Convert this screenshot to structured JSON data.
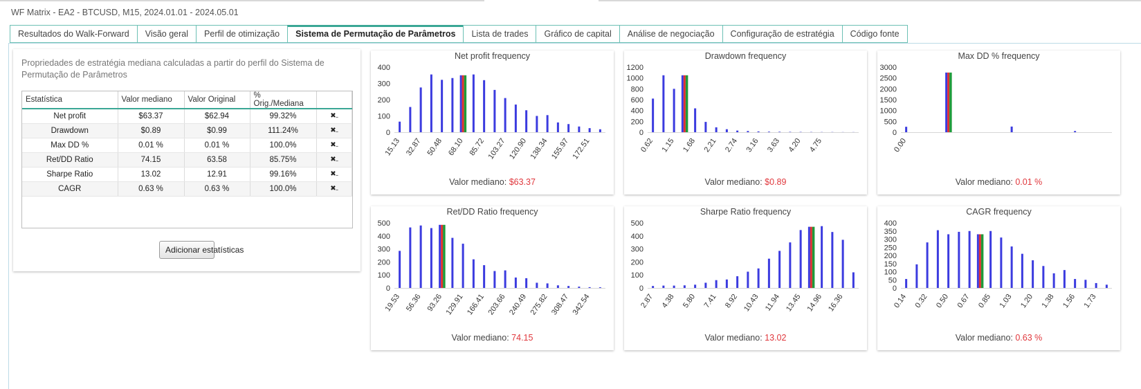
{
  "window": {
    "title": "WF Matrix - EA2 - BTCUSD, M15, 2024.01.01 - 2024.05.01"
  },
  "tabs": [
    {
      "label": "Resultados do Walk-Forward",
      "active": false
    },
    {
      "label": "Visão geral",
      "active": false
    },
    {
      "label": "Perfil de otimização",
      "active": false
    },
    {
      "label": "Sistema de Permutação de Parâmetros",
      "active": true
    },
    {
      "label": "Lista de trades",
      "active": false
    },
    {
      "label": "Gráfico de capital",
      "active": false
    },
    {
      "label": "Análise de negociação",
      "active": false
    },
    {
      "label": "Configuração de estratégia",
      "active": false
    },
    {
      "label": "Código fonte",
      "active": false
    }
  ],
  "left": {
    "description": "Propriedades de estratégia mediana calculadas a partir do perfil do Sistema de Permutação de Parâmetros",
    "headers": [
      "Estatística",
      "Valor mediano",
      "Valor Original",
      "% Orig./Mediana",
      ""
    ],
    "rows": [
      [
        "Net profit",
        "$63.37",
        "$62.94",
        "99.32%"
      ],
      [
        "Drawdown",
        "$0.89",
        "$0.99",
        "111.24%"
      ],
      [
        "Max DD %",
        "0.01 %",
        "0.01 %",
        "100.0%"
      ],
      [
        "Ret/DD Ratio",
        "74.15",
        "63.58",
        "85.75%"
      ],
      [
        "Sharpe Ratio",
        "13.02",
        "12.91",
        "99.16%"
      ],
      [
        "CAGR",
        "0.63 %",
        "0.63 %",
        "100.0%"
      ]
    ],
    "remove_glyph": "✖..",
    "add_button": "Adicionar estatísticas"
  },
  "colors": {
    "bar": "#3b3bdf",
    "red": "#e03030",
    "green": "#1f9a3a",
    "median_value": "#e0373c"
  },
  "median_label": "Valor mediano:",
  "chart_data": [
    {
      "type": "bar",
      "title": "Net profit frequency",
      "median_value": "$63.37",
      "ylim": [
        0,
        400
      ],
      "yticks": [
        0,
        100,
        200,
        300,
        400
      ],
      "xticks": [
        "15.13",
        "32.87",
        "50.48",
        "68.10",
        "85.72",
        "103.27",
        "120.90",
        "138.34",
        "155.97",
        "172.51"
      ],
      "values": [
        65,
        155,
        275,
        355,
        322,
        333,
        350,
        355,
        320,
        260,
        210,
        170,
        135,
        100,
        105,
        60,
        50,
        35,
        25,
        18
      ],
      "highlight_index": 6
    },
    {
      "type": "bar",
      "title": "Drawdown frequency",
      "median_value": "$0.89",
      "ylim": [
        0,
        1200
      ],
      "yticks": [
        0,
        200,
        400,
        600,
        800,
        1000,
        1200
      ],
      "xticks": [
        "0.62",
        "1.15",
        "1.68",
        "2.21",
        "2.74",
        "3.16",
        "3.63",
        "4.20",
        "4.75"
      ],
      "values": [
        620,
        1050,
        800,
        1050,
        440,
        190,
        90,
        55,
        30,
        22,
        14,
        10,
        8,
        6,
        5,
        4,
        3,
        3,
        2,
        2
      ],
      "highlight_index": 3
    },
    {
      "type": "bar",
      "title": "Max DD % frequency",
      "median_value": "0.01 %",
      "ylim": [
        0,
        3000
      ],
      "yticks": [
        0,
        500,
        1000,
        1500,
        2000,
        2500,
        3000
      ],
      "xticks": [
        "0.00"
      ],
      "values": [
        250,
        0,
        0,
        0,
        2750,
        0,
        0,
        0,
        0,
        0,
        260,
        0,
        0,
        0,
        0,
        0,
        55,
        0,
        0,
        0
      ],
      "highlight_index": 4
    },
    {
      "type": "bar",
      "title": "Ret/DD Ratio frequency",
      "median_value": "74.15",
      "ylim": [
        0,
        500
      ],
      "yticks": [
        0,
        100,
        200,
        300,
        400,
        500
      ],
      "xticks": [
        "19.53",
        "56.36",
        "93.26",
        "129.91",
        "166.41",
        "203.66",
        "240.49",
        "275.82",
        "308.47",
        "342.54"
      ],
      "values": [
        285,
        465,
        480,
        460,
        485,
        385,
        340,
        220,
        175,
        130,
        135,
        80,
        75,
        40,
        35,
        20,
        15,
        10,
        6,
        5
      ],
      "highlight_index": 4
    },
    {
      "type": "bar",
      "title": "Sharpe Ratio frequency",
      "median_value": "13.02",
      "ylim": [
        0,
        500
      ],
      "yticks": [
        0,
        100,
        200,
        300,
        400,
        500
      ],
      "xticks": [
        "2.87",
        "4.38",
        "5.80",
        "7.41",
        "8.92",
        "10.43",
        "11.94",
        "13.45",
        "14.96",
        "16.36"
      ],
      "values": [
        15,
        18,
        18,
        20,
        25,
        40,
        60,
        65,
        90,
        125,
        150,
        225,
        285,
        350,
        445,
        470,
        475,
        430,
        370,
        120
      ],
      "highlight_index": 15
    },
    {
      "type": "bar",
      "title": "CAGR frequency",
      "median_value": "0.63 %",
      "ylim": [
        0,
        400
      ],
      "yticks": [
        0,
        50,
        100,
        150,
        200,
        250,
        300,
        350,
        400
      ],
      "xticks": [
        "0.14",
        "0.32",
        "0.50",
        "0.67",
        "0.85",
        "1.03",
        "1.20",
        "1.38",
        "1.56",
        "1.73"
      ],
      "values": [
        55,
        145,
        280,
        355,
        330,
        345,
        350,
        330,
        350,
        310,
        255,
        210,
        170,
        135,
        90,
        110,
        55,
        50,
        30,
        20
      ],
      "highlight_index": 7
    }
  ]
}
